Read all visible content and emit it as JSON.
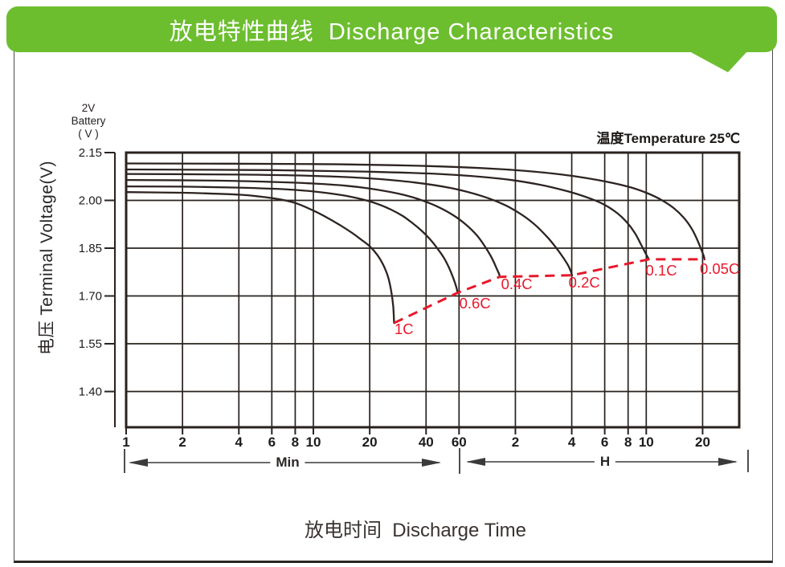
{
  "header": {
    "title": "放电特性曲线  Discharge Characteristics"
  },
  "battery_label": {
    "line1": "2V",
    "line2": "Battery",
    "line3": "( V )"
  },
  "axis": {
    "y_title": "电压 Terminal Voltage(V)",
    "x_title": "放电时间  Discharge Time",
    "temperature_note": "温度Temperature 25℃",
    "minutes_unit_label": "Min",
    "hours_unit_label": "H"
  },
  "colors": {
    "banner_green": "#6cbe2f",
    "curve_black": "#2d2422",
    "grid": "#29221e",
    "dash_red": "#e8182b",
    "arrow_gray": "#3a3a3a",
    "tick_text": "#1c1c1c"
  },
  "chart_data": {
    "type": "line",
    "title": "放电特性曲线 Discharge Characteristics",
    "xlabel": "放电时间 Discharge Time",
    "ylabel": "电压 Terminal Voltage(V)",
    "annotation": "温度Temperature 25℃",
    "x_scale": "log",
    "x_unit": "minutes",
    "xlim_minutes": [
      1,
      1880
    ],
    "ylim_volts": [
      1.288,
      2.15
    ],
    "grid": true,
    "y_ticks": [
      {
        "v": 2.15,
        "label": "2.15"
      },
      {
        "v": 2.0,
        "label": "2.00"
      },
      {
        "v": 1.85,
        "label": "1.85"
      },
      {
        "v": 1.7,
        "label": "1.70"
      },
      {
        "v": 1.55,
        "label": "1.55"
      },
      {
        "v": 1.4,
        "label": "1.40"
      }
    ],
    "x_sections": [
      {
        "unit_label": "Min",
        "ticks": [
          {
            "t": 1,
            "label": "1"
          },
          {
            "t": 2,
            "label": "2"
          },
          {
            "t": 4,
            "label": "4"
          },
          {
            "t": 6,
            "label": "6"
          },
          {
            "t": 8,
            "label": "8"
          },
          {
            "t": 10,
            "label": "10"
          },
          {
            "t": 20,
            "label": "20"
          },
          {
            "t": 40,
            "label": "40"
          },
          {
            "t": 60,
            "label": "60"
          }
        ]
      },
      {
        "unit_label": "H",
        "ticks": [
          {
            "t": 120,
            "label": "2"
          },
          {
            "t": 240,
            "label": "4"
          },
          {
            "t": 360,
            "label": "6"
          },
          {
            "t": 480,
            "label": "8"
          },
          {
            "t": 600,
            "label": "10"
          },
          {
            "t": 1200,
            "label": "20"
          }
        ]
      }
    ],
    "series": [
      {
        "name": "1C",
        "label_t": 30.5,
        "label_v": 1.595,
        "points": [
          [
            1,
            2.026
          ],
          [
            2,
            2.024
          ],
          [
            3,
            2.021
          ],
          [
            4,
            2.018
          ],
          [
            5,
            2.013
          ],
          [
            6.5,
            2.004
          ],
          [
            8,
            1.992
          ],
          [
            10,
            1.968
          ],
          [
            12,
            1.944
          ],
          [
            14,
            1.921
          ],
          [
            16,
            1.899
          ],
          [
            18,
            1.877
          ],
          [
            20,
            1.856
          ],
          [
            22,
            1.828
          ],
          [
            23.5,
            1.8
          ],
          [
            25,
            1.762
          ],
          [
            26,
            1.718
          ],
          [
            26.7,
            1.668
          ],
          [
            27,
            1.615
          ]
        ]
      },
      {
        "name": "0.6C",
        "label_t": 73,
        "label_v": 1.676,
        "points": [
          [
            1,
            2.044
          ],
          [
            2,
            2.043
          ],
          [
            4,
            2.04
          ],
          [
            7,
            2.035
          ],
          [
            10,
            2.028
          ],
          [
            14,
            2.017
          ],
          [
            18,
            2.004
          ],
          [
            22,
            1.989
          ],
          [
            26,
            1.971
          ],
          [
            30,
            1.951
          ],
          [
            34,
            1.928
          ],
          [
            38,
            1.904
          ],
          [
            42,
            1.878
          ],
          [
            46,
            1.849
          ],
          [
            50,
            1.818
          ],
          [
            53,
            1.789
          ],
          [
            56,
            1.755
          ],
          [
            58,
            1.728
          ],
          [
            59,
            1.71
          ]
        ]
      },
      {
        "name": "0.4C",
        "label_t": 122,
        "label_v": 1.737,
        "points": [
          [
            1,
            2.064
          ],
          [
            3,
            2.062
          ],
          [
            6,
            2.058
          ],
          [
            10,
            2.053
          ],
          [
            15,
            2.046
          ],
          [
            20,
            2.037
          ],
          [
            28,
            2.022
          ],
          [
            36,
            2.005
          ],
          [
            45,
            1.983
          ],
          [
            55,
            1.956
          ],
          [
            65,
            1.925
          ],
          [
            75,
            1.889
          ],
          [
            83,
            1.853
          ],
          [
            90,
            1.818
          ],
          [
            95,
            1.788
          ],
          [
            98,
            1.77
          ],
          [
            99,
            1.76
          ]
        ]
      },
      {
        "name": "0.2C",
        "label_t": 280,
        "label_v": 1.742,
        "points": [
          [
            1,
            2.083
          ],
          [
            4,
            2.081
          ],
          [
            10,
            2.077
          ],
          [
            20,
            2.069
          ],
          [
            35,
            2.056
          ],
          [
            55,
            2.038
          ],
          [
            80,
            2.013
          ],
          [
            105,
            1.986
          ],
          [
            130,
            1.955
          ],
          [
            155,
            1.92
          ],
          [
            180,
            1.881
          ],
          [
            200,
            1.848
          ],
          [
            218,
            1.817
          ],
          [
            230,
            1.795
          ],
          [
            237,
            1.778
          ],
          [
            241,
            1.765
          ]
        ]
      },
      {
        "name": "0.1C",
        "label_t": 722,
        "label_v": 1.779,
        "points": [
          [
            1,
            2.097
          ],
          [
            6,
            2.095
          ],
          [
            20,
            2.09
          ],
          [
            50,
            2.082
          ],
          [
            100,
            2.068
          ],
          [
            160,
            2.05
          ],
          [
            230,
            2.028
          ],
          [
            300,
            2.006
          ],
          [
            360,
            1.986
          ],
          [
            420,
            1.96
          ],
          [
            470,
            1.933
          ],
          [
            520,
            1.899
          ],
          [
            560,
            1.864
          ],
          [
            595,
            1.834
          ],
          [
            620,
            1.815
          ]
        ]
      },
      {
        "name": "0.05C",
        "label_t": 1480,
        "label_v": 1.784,
        "points": [
          [
            1,
            2.116
          ],
          [
            10,
            2.114
          ],
          [
            40,
            2.108
          ],
          [
            100,
            2.098
          ],
          [
            200,
            2.083
          ],
          [
            330,
            2.064
          ],
          [
            480,
            2.043
          ],
          [
            600,
            2.024
          ],
          [
            720,
            2.002
          ],
          [
            840,
            1.976
          ],
          [
            950,
            1.946
          ],
          [
            1050,
            1.911
          ],
          [
            1120,
            1.878
          ],
          [
            1180,
            1.846
          ],
          [
            1215,
            1.827
          ],
          [
            1230,
            1.815
          ]
        ]
      }
    ],
    "cutoff_curve": {
      "name": "end-of-discharge-voltage",
      "style": "dashed",
      "points": [
        [
          27,
          1.615
        ],
        [
          59,
          1.71
        ],
        [
          99,
          1.76
        ],
        [
          241,
          1.765
        ],
        [
          620,
          1.815
        ],
        [
          1230,
          1.815
        ]
      ]
    },
    "legend_position": "on-curve-labels"
  }
}
